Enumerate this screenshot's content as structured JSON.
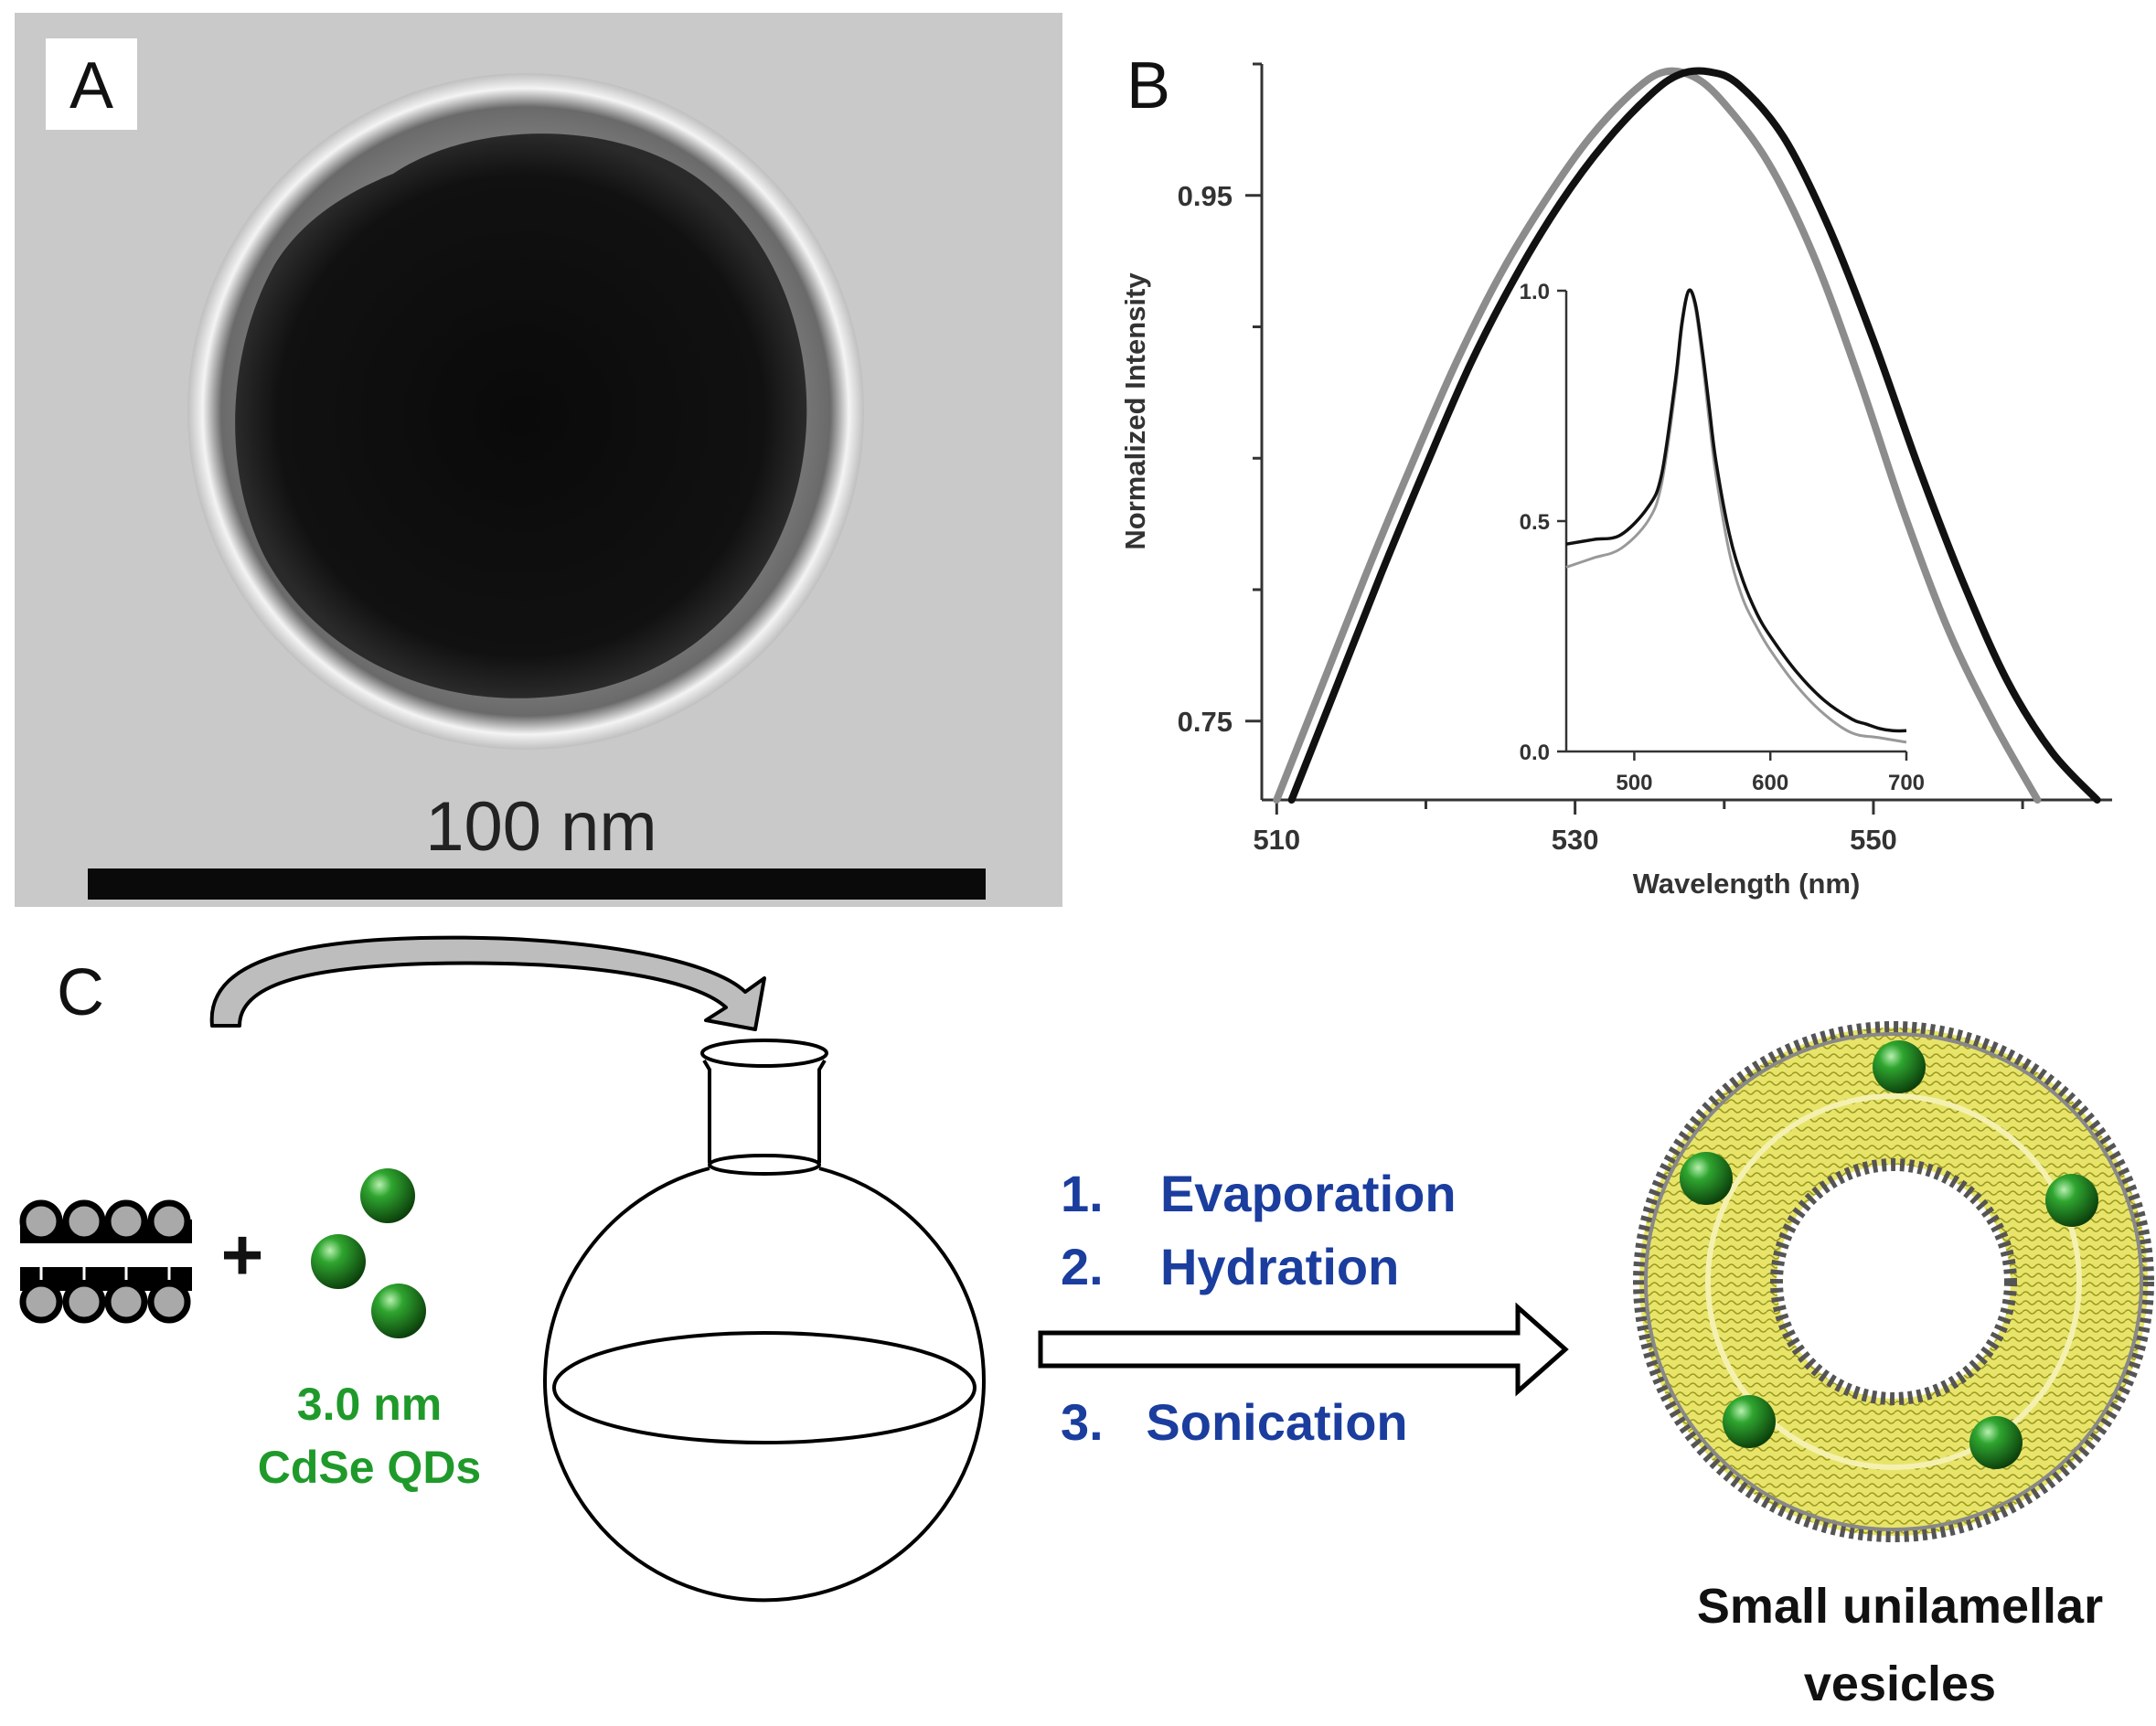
{
  "panel_a": {
    "label": "A",
    "scale_label": "100 nm"
  },
  "panel_b": {
    "label": "B",
    "chart_data": {
      "type": "line",
      "xlabel": "Wavelength (nm)",
      "ylabel": "Normalized Intensity",
      "xlim": [
        509,
        566
      ],
      "ylim": [
        0.72,
        1.0
      ],
      "x_ticks": [
        510,
        530,
        550
      ],
      "x_minor_ticks": [
        520,
        540,
        560
      ],
      "y_ticks": [
        0.75,
        0.95
      ],
      "y_minor_ticks": [
        0.8,
        0.85,
        0.9,
        1.0
      ],
      "series": [
        {
          "color": "#8c8c8c",
          "x": [
            510,
            513,
            516,
            519,
            522,
            525,
            528,
            531,
            534,
            536,
            538,
            540,
            543,
            546,
            549,
            552,
            555,
            558,
            561
          ],
          "y": [
            0.72,
            0.763,
            0.806,
            0.847,
            0.886,
            0.92,
            0.948,
            0.972,
            0.99,
            0.997,
            0.995,
            0.985,
            0.962,
            0.927,
            0.881,
            0.83,
            0.785,
            0.75,
            0.72
          ]
        },
        {
          "color": "#111111",
          "x": [
            511,
            514,
            517,
            520,
            523,
            526,
            529,
            532,
            535,
            537,
            539,
            541,
            544,
            547,
            550,
            553,
            556,
            559,
            562,
            565
          ],
          "y": [
            0.72,
            0.763,
            0.806,
            0.847,
            0.886,
            0.919,
            0.947,
            0.97,
            0.988,
            0.996,
            0.997,
            0.992,
            0.972,
            0.938,
            0.895,
            0.847,
            0.803,
            0.765,
            0.738,
            0.72
          ]
        }
      ],
      "inset": {
        "xlim": [
          450,
          700
        ],
        "ylim": [
          0,
          1.0
        ],
        "x_ticks": [
          500,
          600,
          700
        ],
        "y_ticks": [
          0.0,
          0.5,
          1.0
        ],
        "y_tick_labels": [
          "0.0",
          "0.5",
          "1.0"
        ],
        "series": [
          {
            "color": "#999999",
            "x": [
              450,
              470,
              490,
              510,
              520,
              530,
              535,
              540,
              545,
              550,
              555,
              560,
              570,
              580,
              590,
              600,
              620,
              640,
              660,
              680,
              700
            ],
            "y": [
              0.4,
              0.42,
              0.44,
              0.5,
              0.58,
              0.78,
              0.92,
              1.0,
              0.96,
              0.85,
              0.72,
              0.6,
              0.43,
              0.33,
              0.27,
              0.22,
              0.14,
              0.08,
              0.04,
              0.03,
              0.02
            ]
          },
          {
            "color": "#111111",
            "x": [
              450,
              470,
              490,
              510,
              520,
              530,
              535,
              540,
              545,
              550,
              555,
              560,
              570,
              580,
              590,
              600,
              620,
              640,
              660,
              670,
              680,
              690,
              700
            ],
            "y": [
              0.45,
              0.46,
              0.47,
              0.53,
              0.6,
              0.8,
              0.93,
              1.0,
              0.97,
              0.87,
              0.75,
              0.63,
              0.47,
              0.37,
              0.3,
              0.25,
              0.17,
              0.11,
              0.07,
              0.06,
              0.05,
              0.045,
              0.045
            ]
          }
        ]
      }
    }
  },
  "panel_c": {
    "label": "C",
    "qd_size": "3.0 nm",
    "qd_name": "CdSe QDs",
    "plus": "+",
    "steps": [
      "1.    Evaporation",
      "2.    Hydration",
      "3.   Sonication"
    ],
    "product_line1": "Small unilamellar",
    "product_line2": "vesicles",
    "qd_color": "#1f7a1f",
    "shell_color": "#e8e46a",
    "step_color": "#1a3d9e"
  }
}
